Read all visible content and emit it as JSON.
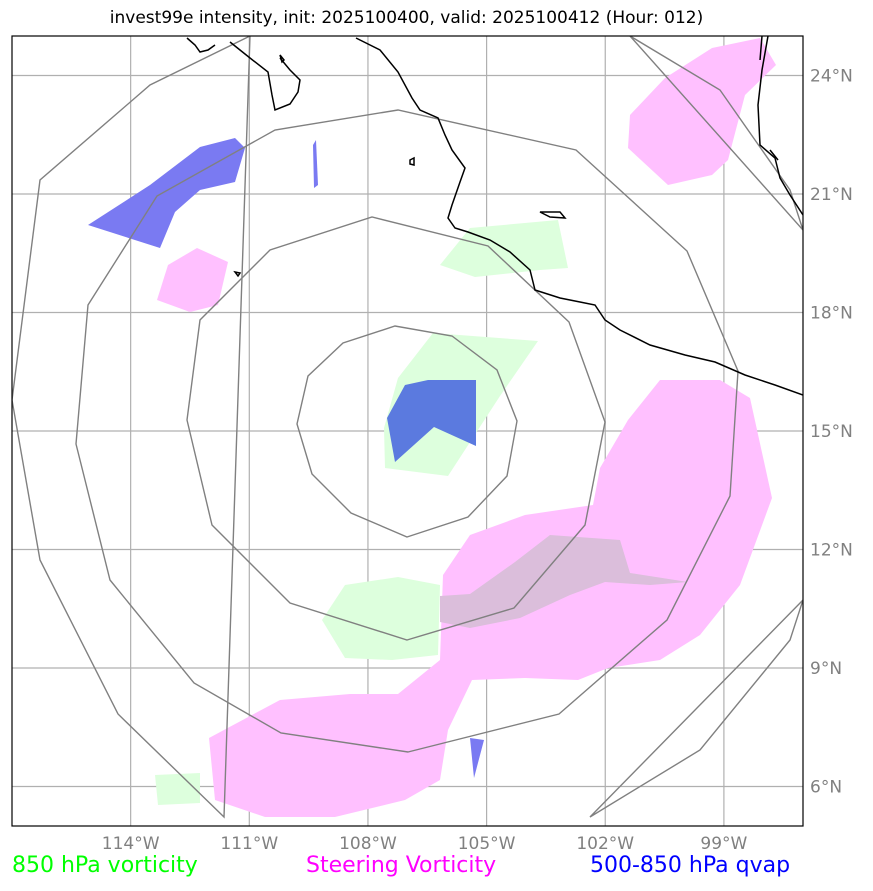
{
  "title": "invest99e intensity, init: 2025100400, valid: 2025100412 (Hour: 012)",
  "map": {
    "extent_lon": [
      -117,
      -97
    ],
    "extent_lat": [
      5,
      25
    ],
    "center": {
      "lon": -105.9,
      "lat": 14.9
    },
    "lon_ticks": [
      {
        "value": -114,
        "label": "114°W"
      },
      {
        "value": -111,
        "label": "111°W"
      },
      {
        "value": -108,
        "label": "108°W"
      },
      {
        "value": -105,
        "label": "105°W"
      },
      {
        "value": -102,
        "label": "102°W"
      },
      {
        "value": -99,
        "label": "99°W"
      }
    ],
    "lat_ticks": [
      {
        "value": 6,
        "label": "6°N"
      },
      {
        "value": 9,
        "label": "9°N"
      },
      {
        "value": 12,
        "label": "12°N"
      },
      {
        "value": 15,
        "label": "15°N"
      },
      {
        "value": 18,
        "label": "18°N"
      },
      {
        "value": 21,
        "label": "21°N"
      },
      {
        "value": 24,
        "label": "24°N"
      }
    ]
  },
  "legend": {
    "vorticity_850": {
      "label": "850 hPa vorticity",
      "color": "#00ff00"
    },
    "steering_vorticity": {
      "label": "Steering Vorticity",
      "color": "#ff00ff"
    },
    "qvap": {
      "label": "500-850 hPa qvap",
      "color": "#0000ff"
    }
  },
  "colors": {
    "grid": "#b0b0b0",
    "rings": "#808080",
    "coast": "#000000",
    "green_fill": "#ddffdd",
    "magenta_fill": "#ffc0ff",
    "blue_fill": "#7a7af2",
    "blue_core": "#5b7adf",
    "overlap_fill": "#dbbedb"
  }
}
